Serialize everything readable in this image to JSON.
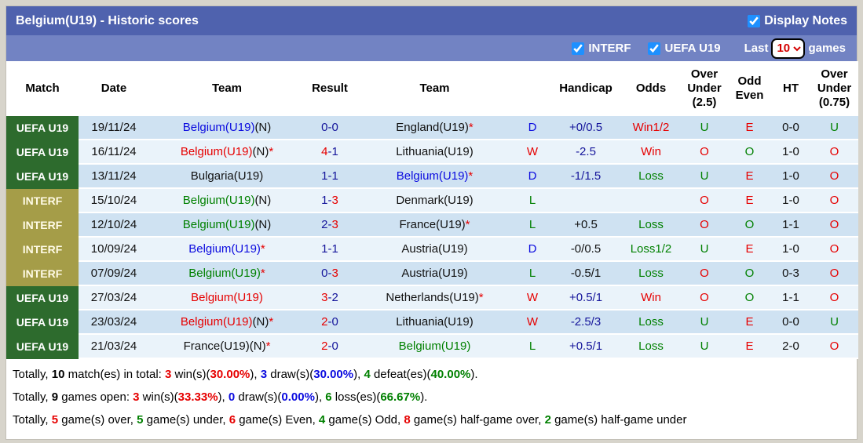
{
  "colors": {
    "red": "#e60000",
    "green": "#008000",
    "blue": "#0b0bdf",
    "navy": "#15159b",
    "black": "#111111",
    "title_bar": "#4f62ae",
    "filter_bar": "#7283c3",
    "uefa_badge": "#2d6b2d",
    "interf_badge": "#a59d48",
    "interf_badge_text": "#fffbe6",
    "row_dark": "#cfe2f2",
    "row_light": "#eaf3fa",
    "checkbox_accent": "#1e90ff",
    "select_text": "#d40000",
    "page_bg": "#d7d4cb"
  },
  "titlebar": {
    "title": "Belgium(U19) - Historic scores",
    "display_notes_label": "Display Notes",
    "display_notes_checked": true
  },
  "filterbar": {
    "interf_label": "INTERF",
    "interf_checked": true,
    "uefa_label": "UEFA U19",
    "uefa_checked": true,
    "last_label": "Last",
    "games_label": "games",
    "games_value": "10"
  },
  "table": {
    "columns": [
      "Match",
      "Date",
      "Team",
      "Result",
      "Team",
      "",
      "Handicap",
      "Odds",
      "Over\nUnder\n(2.5)",
      "Odd\nEven",
      "HT",
      "Over\nUnder\n(0.75)"
    ],
    "rows": [
      {
        "badge": "UEFA U19",
        "badge_type": "uefa",
        "date": "19/11/24",
        "home": {
          "name": "Belgium(U19)",
          "color": "blue",
          "suffix": "(N)",
          "star": false
        },
        "score": {
          "home": "0",
          "away": "0",
          "home_color": "navy",
          "away_color": "navy"
        },
        "away": {
          "name": "England(U19)",
          "color": "black",
          "suffix": "",
          "star": true
        },
        "outcome": {
          "t": "D",
          "c": "blue"
        },
        "handicap": {
          "t": "+0/0.5",
          "c": "navy"
        },
        "odds": {
          "t": "Win1/2",
          "c": "red"
        },
        "ou25": {
          "t": "U",
          "c": "green"
        },
        "odd_even": {
          "t": "E",
          "c": "red"
        },
        "ht": "0-0",
        "ou075": {
          "t": "U",
          "c": "green"
        }
      },
      {
        "badge": "UEFA U19",
        "badge_type": "uefa",
        "date": "16/11/24",
        "home": {
          "name": "Belgium(U19)",
          "color": "red",
          "suffix": "(N)",
          "star": true
        },
        "score": {
          "home": "4",
          "away": "1",
          "home_color": "red",
          "away_color": "navy"
        },
        "away": {
          "name": "Lithuania(U19)",
          "color": "black",
          "suffix": "",
          "star": false
        },
        "outcome": {
          "t": "W",
          "c": "red"
        },
        "handicap": {
          "t": "-2.5",
          "c": "navy"
        },
        "odds": {
          "t": "Win",
          "c": "red"
        },
        "ou25": {
          "t": "O",
          "c": "red"
        },
        "odd_even": {
          "t": "O",
          "c": "green"
        },
        "ht": "1-0",
        "ou075": {
          "t": "O",
          "c": "red"
        }
      },
      {
        "badge": "UEFA U19",
        "badge_type": "uefa",
        "date": "13/11/24",
        "home": {
          "name": "Bulgaria(U19)",
          "color": "black",
          "suffix": "",
          "star": false
        },
        "score": {
          "home": "1",
          "away": "1",
          "home_color": "navy",
          "away_color": "navy"
        },
        "away": {
          "name": "Belgium(U19)",
          "color": "blue",
          "suffix": "",
          "star": true
        },
        "outcome": {
          "t": "D",
          "c": "blue"
        },
        "handicap": {
          "t": "-1/1.5",
          "c": "navy"
        },
        "odds": {
          "t": "Loss",
          "c": "green"
        },
        "ou25": {
          "t": "U",
          "c": "green"
        },
        "odd_even": {
          "t": "E",
          "c": "red"
        },
        "ht": "1-0",
        "ou075": {
          "t": "O",
          "c": "red"
        }
      },
      {
        "badge": "INTERF",
        "badge_type": "interf",
        "date": "15/10/24",
        "home": {
          "name": "Belgium(U19)",
          "color": "green",
          "suffix": "(N)",
          "star": false
        },
        "score": {
          "home": "1",
          "away": "3",
          "home_color": "navy",
          "away_color": "red"
        },
        "away": {
          "name": "Denmark(U19)",
          "color": "black",
          "suffix": "",
          "star": false
        },
        "outcome": {
          "t": "L",
          "c": "green"
        },
        "handicap": {
          "t": "",
          "c": "black"
        },
        "odds": {
          "t": "",
          "c": "black"
        },
        "ou25": {
          "t": "O",
          "c": "red"
        },
        "odd_even": {
          "t": "E",
          "c": "red"
        },
        "ht": "1-0",
        "ou075": {
          "t": "O",
          "c": "red"
        }
      },
      {
        "badge": "INTERF",
        "badge_type": "interf",
        "date": "12/10/24",
        "home": {
          "name": "Belgium(U19)",
          "color": "green",
          "suffix": "(N)",
          "star": false
        },
        "score": {
          "home": "2",
          "away": "3",
          "home_color": "navy",
          "away_color": "red"
        },
        "away": {
          "name": "France(U19)",
          "color": "black",
          "suffix": "",
          "star": true
        },
        "outcome": {
          "t": "L",
          "c": "green"
        },
        "handicap": {
          "t": "+0.5",
          "c": "black"
        },
        "odds": {
          "t": "Loss",
          "c": "green"
        },
        "ou25": {
          "t": "O",
          "c": "red"
        },
        "odd_even": {
          "t": "O",
          "c": "green"
        },
        "ht": "1-1",
        "ou075": {
          "t": "O",
          "c": "red"
        }
      },
      {
        "badge": "INTERF",
        "badge_type": "interf",
        "date": "10/09/24",
        "home": {
          "name": "Belgium(U19)",
          "color": "blue",
          "suffix": "",
          "star": true
        },
        "score": {
          "home": "1",
          "away": "1",
          "home_color": "navy",
          "away_color": "navy"
        },
        "away": {
          "name": "Austria(U19)",
          "color": "black",
          "suffix": "",
          "star": false
        },
        "outcome": {
          "t": "D",
          "c": "blue"
        },
        "handicap": {
          "t": "-0/0.5",
          "c": "black"
        },
        "odds": {
          "t": "Loss1/2",
          "c": "green"
        },
        "ou25": {
          "t": "U",
          "c": "green"
        },
        "odd_even": {
          "t": "E",
          "c": "red"
        },
        "ht": "1-0",
        "ou075": {
          "t": "O",
          "c": "red"
        }
      },
      {
        "badge": "INTERF",
        "badge_type": "interf",
        "date": "07/09/24",
        "home": {
          "name": "Belgium(U19)",
          "color": "green",
          "suffix": "",
          "star": true
        },
        "score": {
          "home": "0",
          "away": "3",
          "home_color": "navy",
          "away_color": "red"
        },
        "away": {
          "name": "Austria(U19)",
          "color": "black",
          "suffix": "",
          "star": false
        },
        "outcome": {
          "t": "L",
          "c": "green"
        },
        "handicap": {
          "t": "-0.5/1",
          "c": "black"
        },
        "odds": {
          "t": "Loss",
          "c": "green"
        },
        "ou25": {
          "t": "O",
          "c": "red"
        },
        "odd_even": {
          "t": "O",
          "c": "green"
        },
        "ht": "0-3",
        "ou075": {
          "t": "O",
          "c": "red"
        }
      },
      {
        "badge": "UEFA U19",
        "badge_type": "uefa",
        "date": "27/03/24",
        "home": {
          "name": "Belgium(U19)",
          "color": "red",
          "suffix": "",
          "star": false
        },
        "score": {
          "home": "3",
          "away": "2",
          "home_color": "red",
          "away_color": "navy"
        },
        "away": {
          "name": "Netherlands(U19)",
          "color": "black",
          "suffix": "",
          "star": true
        },
        "outcome": {
          "t": "W",
          "c": "red"
        },
        "handicap": {
          "t": "+0.5/1",
          "c": "navy"
        },
        "odds": {
          "t": "Win",
          "c": "red"
        },
        "ou25": {
          "t": "O",
          "c": "red"
        },
        "odd_even": {
          "t": "O",
          "c": "green"
        },
        "ht": "1-1",
        "ou075": {
          "t": "O",
          "c": "red"
        }
      },
      {
        "badge": "UEFA U19",
        "badge_type": "uefa",
        "date": "23/03/24",
        "home": {
          "name": "Belgium(U19)",
          "color": "red",
          "suffix": "(N)",
          "star": true
        },
        "score": {
          "home": "2",
          "away": "0",
          "home_color": "red",
          "away_color": "navy"
        },
        "away": {
          "name": "Lithuania(U19)",
          "color": "black",
          "suffix": "",
          "star": false
        },
        "outcome": {
          "t": "W",
          "c": "red"
        },
        "handicap": {
          "t": "-2.5/3",
          "c": "navy"
        },
        "odds": {
          "t": "Loss",
          "c": "green"
        },
        "ou25": {
          "t": "U",
          "c": "green"
        },
        "odd_even": {
          "t": "E",
          "c": "red"
        },
        "ht": "0-0",
        "ou075": {
          "t": "U",
          "c": "green"
        }
      },
      {
        "badge": "UEFA U19",
        "badge_type": "uefa",
        "date": "21/03/24",
        "home": {
          "name": "France(U19)",
          "color": "black",
          "suffix": "(N)",
          "star": true
        },
        "score": {
          "home": "2",
          "away": "0",
          "home_color": "red",
          "away_color": "navy"
        },
        "away": {
          "name": "Belgium(U19)",
          "color": "green",
          "suffix": "",
          "star": false
        },
        "outcome": {
          "t": "L",
          "c": "green"
        },
        "handicap": {
          "t": "+0.5/1",
          "c": "navy"
        },
        "odds": {
          "t": "Loss",
          "c": "green"
        },
        "ou25": {
          "t": "U",
          "c": "green"
        },
        "odd_even": {
          "t": "E",
          "c": "red"
        },
        "ht": "2-0",
        "ou075": {
          "t": "O",
          "c": "red"
        }
      }
    ]
  },
  "footer": {
    "lines": [
      [
        {
          "t": "Totally, "
        },
        {
          "t": "10",
          "b": true
        },
        {
          "t": " match(es) in total: "
        },
        {
          "t": "3",
          "c": "red",
          "b": true
        },
        {
          "t": " win(s)("
        },
        {
          "t": "30.00%",
          "c": "red",
          "b": true
        },
        {
          "t": "), "
        },
        {
          "t": "3",
          "c": "blue",
          "b": true
        },
        {
          "t": " draw(s)("
        },
        {
          "t": "30.00%",
          "c": "blue",
          "b": true
        },
        {
          "t": "), "
        },
        {
          "t": "4",
          "c": "green",
          "b": true
        },
        {
          "t": " defeat(es)("
        },
        {
          "t": "40.00%",
          "c": "green",
          "b": true
        },
        {
          "t": ")."
        }
      ],
      [
        {
          "t": "Totally, "
        },
        {
          "t": "9",
          "b": true
        },
        {
          "t": " games open: "
        },
        {
          "t": "3",
          "c": "red",
          "b": true
        },
        {
          "t": " win(s)("
        },
        {
          "t": "33.33%",
          "c": "red",
          "b": true
        },
        {
          "t": "), "
        },
        {
          "t": "0",
          "c": "blue",
          "b": true
        },
        {
          "t": " draw(s)("
        },
        {
          "t": "0.00%",
          "c": "blue",
          "b": true
        },
        {
          "t": "), "
        },
        {
          "t": "6",
          "c": "green",
          "b": true
        },
        {
          "t": " loss(es)("
        },
        {
          "t": "66.67%",
          "c": "green",
          "b": true
        },
        {
          "t": ")."
        }
      ],
      [
        {
          "t": "Totally, "
        },
        {
          "t": "5",
          "c": "red",
          "b": true
        },
        {
          "t": " game(s) over, "
        },
        {
          "t": "5",
          "c": "green",
          "b": true
        },
        {
          "t": " game(s) under, "
        },
        {
          "t": "6",
          "c": "red",
          "b": true
        },
        {
          "t": " game(s) Even, "
        },
        {
          "t": "4",
          "c": "green",
          "b": true
        },
        {
          "t": " game(s) Odd, "
        },
        {
          "t": "8",
          "c": "red",
          "b": true
        },
        {
          "t": " game(s) half-game over, "
        },
        {
          "t": "2",
          "c": "green",
          "b": true
        },
        {
          "t": " game(s) half-game under"
        }
      ]
    ]
  }
}
